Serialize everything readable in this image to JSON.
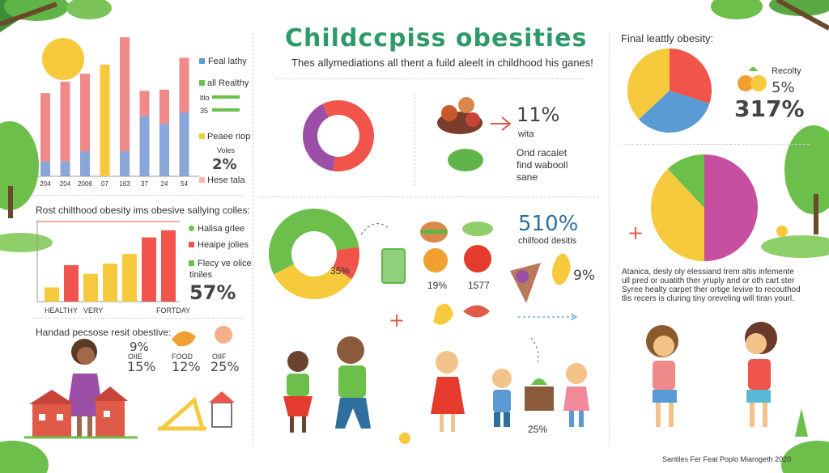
{
  "header": {
    "title": "Childccpiss obesities",
    "subtitle": "Thes allymediations all thent a fuild aleelt in childhood his ganes!"
  },
  "colors": {
    "green": "#6cbf4b",
    "red": "#f0544a",
    "yellow": "#f7c93c",
    "purple": "#9b4fa6",
    "blue": "#5b9bd5",
    "pink": "#f08a8a",
    "periwinkle": "#8aa6d9",
    "magenta": "#c64fa0",
    "title_green": "#2e9a6a"
  },
  "left_top": {
    "legend": [
      "Feal lathy",
      "all Realthy",
      "ltlo",
      "35",
      "Peaee riop",
      "Voles",
      "2%",
      "Hese tala"
    ]
  },
  "left_mid": {
    "heading": "Rost chilthood obesity ims obesive sallying colles:",
    "legend": [
      "Halisa grlee",
      "Heaipe jolies",
      "Flecy ve olice",
      "tiniles"
    ],
    "stat": "57%"
  },
  "left_bottom": {
    "heading": "Handad pecsose resit obestive:",
    "stats": [
      {
        "value": "9%",
        "label": "OIIE",
        "value2": "15%"
      },
      {
        "value": "",
        "label": "FOOD",
        "value2": "12%"
      },
      {
        "value": "",
        "label": "OIIF",
        "value2": "25%"
      }
    ]
  },
  "center": {
    "stat1": "11%",
    "stat1_label": "wita",
    "note_line1": "Ond racalet",
    "note_line2": "find wabooll",
    "note_line3": "sane",
    "pie_label": "35%",
    "stat2": "510%",
    "stat2_label": "chilfood desitis",
    "food_stat1": "19%",
    "food_stat2": "1577",
    "food_stat3": "9%",
    "kids_stat": "25%"
  },
  "right": {
    "heading": "Final leattly obesity:",
    "label": "Recolty",
    "stat1": "5%",
    "stat2": "317%",
    "paragraph": [
      "Atanica, desly oly elessiand trem altis infemente",
      "ull pred or ouatith ther yruply and or oth cart ster",
      "Syree healty carpet ther ortige levive to recouthod",
      "tlis recers is cluring tiny oreveling will tiran yourl."
    ],
    "footer": "Santiles Fer Feat Poplo Miarogeth 2020"
  },
  "chart_data": [
    {
      "type": "bar",
      "title": "",
      "categories": [
        "204",
        "204",
        "2006",
        "07",
        "163",
        "37",
        "24",
        "54"
      ],
      "series": [
        {
          "name": "Feal lathy",
          "values": [
            13,
            13,
            22,
            0,
            0,
            0,
            0,
            0
          ]
        },
        {
          "name": "all Realthy",
          "values": [
            0,
            0,
            0,
            0,
            22,
            53,
            46,
            56
          ]
        },
        {
          "name": "Peaee riop",
          "values": [
            0,
            0,
            0,
            98,
            0,
            0,
            0,
            0
          ]
        },
        {
          "name": "Hese tala",
          "values": [
            60,
            70,
            68,
            0,
            100,
            22,
            30,
            48
          ]
        }
      ],
      "ylim": [
        0,
        110
      ]
    },
    {
      "type": "bar",
      "title": "Rost chilthood obesity ims obesive sallying colles:",
      "categories": [
        "HEALTHY",
        "",
        "VERY",
        "",
        "",
        "",
        "FORTDAY"
      ],
      "values": [
        18,
        46,
        35,
        48,
        60,
        81,
        90
      ],
      "colors": [
        "#f7c93c",
        "#f0544a",
        "#f7c93c",
        "#f7c93c",
        "#f7c93c",
        "#f0544a",
        "#f0544a"
      ],
      "ylim": [
        0,
        100
      ]
    },
    {
      "type": "pie",
      "title": "",
      "labels": [
        "purple",
        "red"
      ],
      "values": [
        40,
        60
      ],
      "colors": [
        "#9b4fa6",
        "#f0544a"
      ],
      "donut": true
    },
    {
      "type": "pie",
      "title": "",
      "labels": [
        "green",
        "red",
        "yellow"
      ],
      "values": [
        55,
        12,
        33
      ],
      "colors": [
        "#6cbf4b",
        "#f0544a",
        "#f7c93c"
      ],
      "donut": true
    },
    {
      "type": "pie",
      "title": "Final leattly obesity:",
      "labels": [
        "red",
        "blue",
        "yellow"
      ],
      "values": [
        30,
        33,
        37
      ],
      "colors": [
        "#f0544a",
        "#5b9bd5",
        "#f7c93c"
      ]
    },
    {
      "type": "pie",
      "title": "",
      "labels": [
        "magenta",
        "yellow",
        "green"
      ],
      "values": [
        50,
        38,
        12
      ],
      "colors": [
        "#c64fa0",
        "#f7c93c",
        "#6cbf4b"
      ]
    }
  ]
}
